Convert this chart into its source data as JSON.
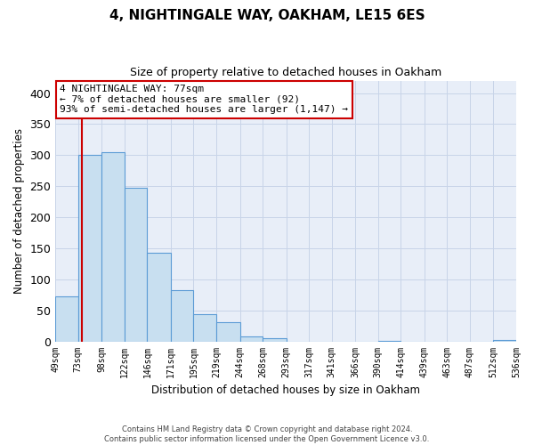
{
  "title": "4, NIGHTINGALE WAY, OAKHAM, LE15 6ES",
  "subtitle": "Size of property relative to detached houses in Oakham",
  "xlabel": "Distribution of detached houses by size in Oakham",
  "ylabel": "Number of detached properties",
  "bar_edges": [
    49,
    73,
    98,
    122,
    146,
    171,
    195,
    219,
    244,
    268,
    293,
    317,
    341,
    366,
    390,
    414,
    439,
    463,
    487,
    512,
    536
  ],
  "bar_heights": [
    73,
    300,
    305,
    248,
    143,
    82,
    44,
    31,
    8,
    5,
    0,
    0,
    0,
    0,
    1,
    0,
    0,
    0,
    0,
    2
  ],
  "tick_labels": [
    "49sqm",
    "73sqm",
    "98sqm",
    "122sqm",
    "146sqm",
    "171sqm",
    "195sqm",
    "219sqm",
    "244sqm",
    "268sqm",
    "293sqm",
    "317sqm",
    "341sqm",
    "366sqm",
    "390sqm",
    "414sqm",
    "439sqm",
    "463sqm",
    "487sqm",
    "512sqm",
    "536sqm"
  ],
  "bar_color": "#c8dff0",
  "bar_edge_color": "#5b9bd5",
  "vline_x": 77,
  "vline_color": "#cc0000",
  "ylim": [
    0,
    420
  ],
  "yticks": [
    0,
    50,
    100,
    150,
    200,
    250,
    300,
    350,
    400
  ],
  "annotation_line1": "4 NIGHTINGALE WAY: 77sqm",
  "annotation_line2": "← 7% of detached houses are smaller (92)",
  "annotation_line3": "93% of semi-detached houses are larger (1,147) →",
  "annotation_box_color": "#ffffff",
  "annotation_border_color": "#cc0000",
  "footer_line1": "Contains HM Land Registry data © Crown copyright and database right 2024.",
  "footer_line2": "Contains public sector information licensed under the Open Government Licence v3.0.",
  "bg_color": "#e8eef8",
  "grid_color": "#c8d4e8"
}
